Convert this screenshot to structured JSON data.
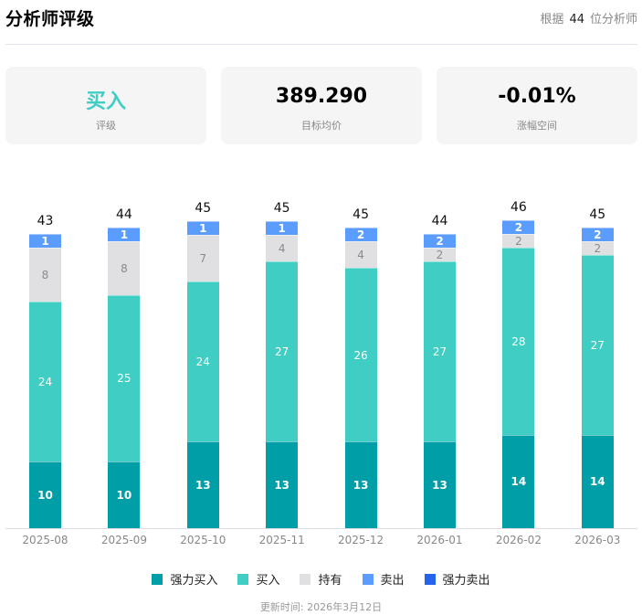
{
  "header": {
    "title": "分析师评级",
    "count_prefix": "根据",
    "count_value": "44",
    "count_suffix": "位分析师"
  },
  "cards": [
    {
      "value": "买入",
      "label": "评级"
    },
    {
      "value": "389.290",
      "label": "目标均价"
    },
    {
      "value": "-0.01%",
      "label": "涨幅空间"
    }
  ],
  "colors": {
    "strong_buy": "#009ea6",
    "buy": "#40cdc4",
    "hold": "#e0e0e3",
    "sell": "#5b9cff",
    "strong_sell": "#2563eb"
  },
  "legend": [
    {
      "key": "strong_buy",
      "label": "强力买入"
    },
    {
      "key": "buy",
      "label": "买入"
    },
    {
      "key": "hold",
      "label": "持有"
    },
    {
      "key": "sell",
      "label": "卖出"
    },
    {
      "key": "strong_sell",
      "label": "强力卖出"
    }
  ],
  "footer": {
    "updated": "更新时间: 2026年3月12日"
  },
  "chart_data": {
    "type": "bar",
    "stacked": true,
    "title": "分析师评级",
    "xlabel": "",
    "ylabel": "",
    "categories": [
      "2025-08",
      "2025-09",
      "2025-10",
      "2025-11",
      "2025-12",
      "2026-01",
      "2026-02",
      "2026-03"
    ],
    "series": [
      {
        "name": "强力买入",
        "key": "strong_buy",
        "values": [
          10,
          10,
          13,
          13,
          13,
          13,
          14,
          14
        ]
      },
      {
        "name": "买入",
        "key": "buy",
        "values": [
          24,
          25,
          24,
          27,
          26,
          27,
          28,
          27
        ]
      },
      {
        "name": "持有",
        "key": "hold",
        "values": [
          8,
          8,
          7,
          4,
          4,
          2,
          2,
          2
        ]
      },
      {
        "name": "卖出",
        "key": "sell",
        "values": [
          1,
          1,
          1,
          1,
          2,
          2,
          2,
          2
        ]
      },
      {
        "name": "强力卖出",
        "key": "strong_sell",
        "values": [
          0,
          0,
          0,
          0,
          0,
          0,
          0,
          0
        ]
      }
    ],
    "totals": [
      43,
      44,
      45,
      45,
      45,
      44,
      46,
      45
    ],
    "grid": false,
    "legend_position": "bottom"
  }
}
